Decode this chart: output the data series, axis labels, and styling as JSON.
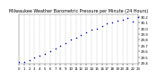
{
  "title": "Milwaukee Weather Barometric Pressure per Minute (24 Hours)",
  "title_fontsize": 3.5,
  "background_color": "#ffffff",
  "plot_bg_color": "#ffffff",
  "dot_color": "#0000cc",
  "dot_size": 1.2,
  "grid_color": "#bbbbbb",
  "grid_style": "--",
  "xlim": [
    0,
    23
  ],
  "ylim": [
    29.38,
    30.25
  ],
  "xtick_fontsize": 2.8,
  "ytick_fontsize": 2.8,
  "x_hours": [
    0,
    1,
    2,
    3,
    4,
    5,
    6,
    7,
    8,
    9,
    10,
    11,
    12,
    13,
    14,
    15,
    16,
    17,
    18,
    19,
    20,
    21,
    22,
    23
  ],
  "pressure": [
    29.42,
    29.41,
    29.44,
    29.49,
    29.52,
    29.56,
    29.6,
    29.65,
    29.7,
    29.74,
    29.8,
    29.84,
    29.89,
    29.93,
    29.97,
    30.0,
    30.04,
    30.08,
    30.1,
    30.13,
    30.15,
    30.18,
    30.12,
    30.2
  ],
  "x_ticks": [
    0,
    1,
    2,
    3,
    4,
    5,
    6,
    7,
    8,
    9,
    10,
    11,
    12,
    13,
    14,
    15,
    16,
    17,
    18,
    19,
    20,
    21,
    22,
    23
  ],
  "y_ticks": [
    29.4,
    29.5,
    29.6,
    29.7,
    29.8,
    29.9,
    30.0,
    30.1,
    30.2
  ],
  "y_tick_labels": [
    "29.4",
    "29.5",
    "29.6",
    "29.7",
    "29.8",
    "29.9",
    "30.0",
    "30.1",
    "30.2"
  ]
}
